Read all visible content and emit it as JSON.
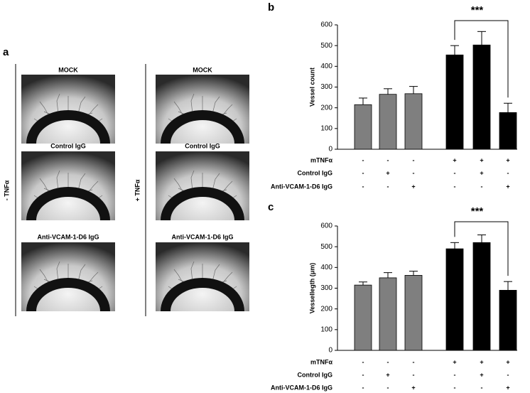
{
  "panel_a": {
    "label": "a",
    "columns": [
      {
        "treatment": "- TNFα",
        "images": [
          "MOCK",
          "Control IgG",
          "Anti-VCAM-1-D6 IgG"
        ]
      },
      {
        "treatment": "+ TNFα",
        "images": [
          "MOCK",
          "Control IgG",
          "Anti-VCAM-1-D6 IgG"
        ]
      }
    ]
  },
  "chart_data": [
    {
      "type": "bar",
      "panel_label": "b",
      "y_label": "Vessel count",
      "annotation": "***",
      "values": [
        215,
        265,
        268,
        455,
        503,
        177
      ],
      "errors": [
        32,
        27,
        35,
        45,
        65,
        45
      ],
      "colors": [
        "#7f7f7f",
        "#7f7f7f",
        "#7f7f7f",
        "#000000",
        "#000000",
        "#000000"
      ],
      "ylim": [
        0,
        600
      ],
      "yticks": [
        0,
        100,
        200,
        300,
        400,
        500,
        600
      ],
      "conditions": [
        {
          "name": "mTNFα",
          "signs": [
            "-",
            "-",
            "-",
            "+",
            "+",
            "+"
          ]
        },
        {
          "name": "Control IgG",
          "signs": [
            "-",
            "+",
            "-",
            "-",
            "+",
            "-"
          ]
        },
        {
          "name": "Anti-VCAM-1-D6 IgG",
          "signs": [
            "-",
            "-",
            "+",
            "-",
            "-",
            "+"
          ]
        }
      ]
    },
    {
      "type": "bar",
      "panel_label": "c",
      "y_label": "Vessellegth (μm)",
      "annotation": "***",
      "values": [
        315,
        350,
        362,
        490,
        520,
        290
      ],
      "errors": [
        15,
        25,
        20,
        30,
        37,
        42
      ],
      "colors": [
        "#7f7f7f",
        "#7f7f7f",
        "#7f7f7f",
        "#000000",
        "#000000",
        "#000000"
      ],
      "ylim": [
        0,
        600
      ],
      "yticks": [
        0,
        100,
        200,
        300,
        400,
        500,
        600
      ],
      "conditions": [
        {
          "name": "mTNFα",
          "signs": [
            "-",
            "-",
            "-",
            "+",
            "+",
            "+"
          ]
        },
        {
          "name": "Control IgG",
          "signs": [
            "-",
            "+",
            "-",
            "-",
            "+",
            "-"
          ]
        },
        {
          "name": "Anti-VCAM-1-D6 IgG",
          "signs": [
            "-",
            "-",
            "+",
            "-",
            "-",
            "+"
          ]
        }
      ]
    }
  ]
}
